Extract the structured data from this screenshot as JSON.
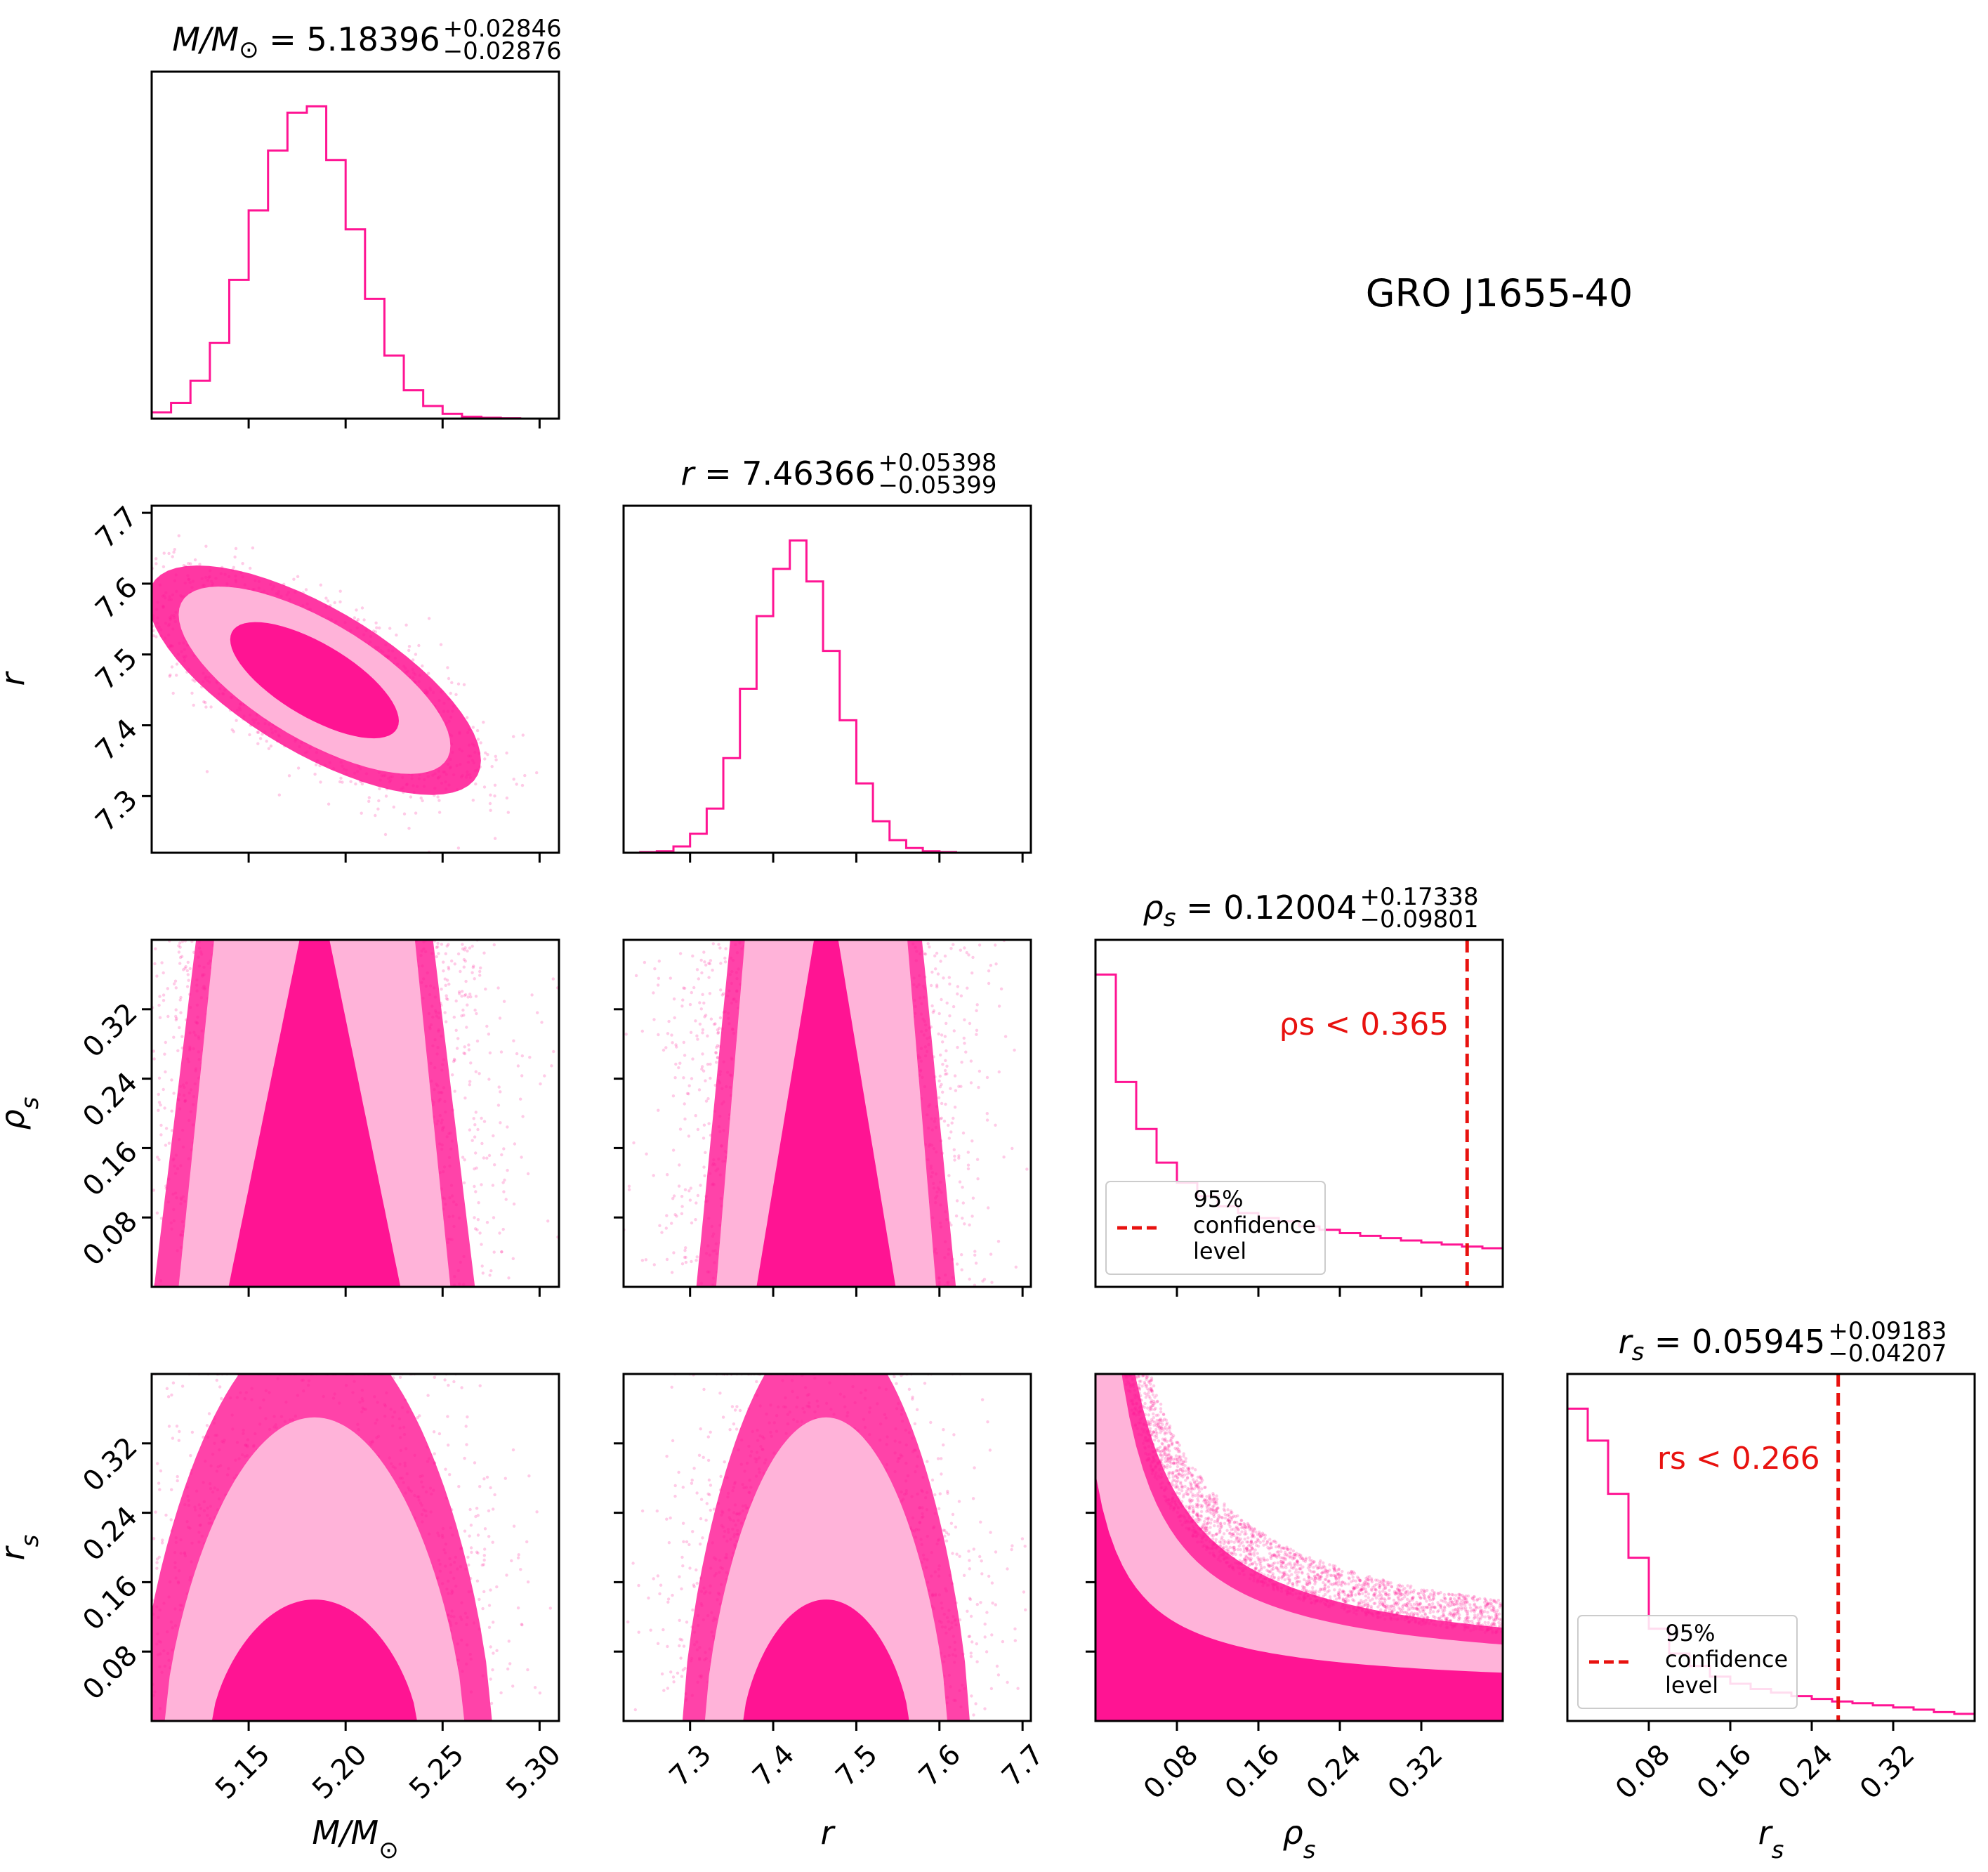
{
  "figure": {
    "object_label": "GRO J1655-40",
    "colors": {
      "hist": "#ff1493",
      "inner": "#ff1493",
      "outer": "#ffb3d9",
      "scatter": "#ff1493",
      "limit": "#e8120f"
    }
  },
  "chart_data": {
    "type": "corner",
    "parameters": [
      {
        "key": "M",
        "label": "M/M⊙",
        "median": "5.18396",
        "plus": "+0.02846",
        "minus": "−0.02876",
        "range": [
          5.1,
          5.31
        ],
        "ticks": [
          "5.15",
          "5.20",
          "5.25",
          "5.30"
        ],
        "tick_values": [
          5.15,
          5.2,
          5.25,
          5.3
        ]
      },
      {
        "key": "r",
        "label": "r",
        "median": "7.46366",
        "plus": "+0.05398",
        "minus": "−0.05399",
        "range": [
          7.22,
          7.71
        ],
        "ticks": [
          "7.3",
          "7.4",
          "7.5",
          "7.6",
          "7.7"
        ],
        "tick_values": [
          7.3,
          7.4,
          7.5,
          7.6,
          7.7
        ]
      },
      {
        "key": "rho_s",
        "label": "ρs",
        "median": "0.12004",
        "plus": "+0.17338",
        "minus": "−0.09801",
        "range": [
          0.0,
          0.4
        ],
        "ticks": [
          "0.08",
          "0.16",
          "0.24",
          "0.32"
        ],
        "tick_values": [
          0.08,
          0.16,
          0.24,
          0.32
        ]
      },
      {
        "key": "r_s",
        "label": "rs",
        "median": "0.05945",
        "plus": "+0.09183",
        "minus": "−0.04207",
        "range": [
          0.0,
          0.4
        ],
        "ticks": [
          "0.08",
          "0.16",
          "0.24",
          "0.32"
        ],
        "tick_values": [
          0.08,
          0.16,
          0.24,
          0.32
        ]
      }
    ],
    "histograms": {
      "M": {
        "edges_start": 5.1,
        "bin_width": 0.01,
        "counts": [
          0.02,
          0.05,
          0.12,
          0.24,
          0.44,
          0.66,
          0.85,
          0.97,
          0.99,
          0.82,
          0.6,
          0.38,
          0.2,
          0.09,
          0.04,
          0.015,
          0.006,
          0.003,
          0.001,
          0.0,
          0.0
        ]
      },
      "r": {
        "edges_start": 7.22,
        "bin_width": 0.02,
        "counts": [
          0.0,
          0.002,
          0.005,
          0.02,
          0.06,
          0.14,
          0.3,
          0.52,
          0.75,
          0.9,
          0.99,
          0.86,
          0.64,
          0.42,
          0.22,
          0.1,
          0.04,
          0.015,
          0.005,
          0.002,
          0.0,
          0.0,
          0.0,
          0.0,
          0.0
        ]
      },
      "rho_s": {
        "edges_start": 0.0,
        "bin_width": 0.02,
        "counts": [
          0.93,
          0.61,
          0.47,
          0.37,
          0.31,
          0.27,
          0.24,
          0.22,
          0.205,
          0.195,
          0.18,
          0.17,
          0.16,
          0.152,
          0.145,
          0.138,
          0.132,
          0.126,
          0.12,
          0.115
        ]
      },
      "r_s": {
        "edges_start": 0.0,
        "bin_width": 0.02,
        "counts": [
          0.88,
          0.79,
          0.64,
          0.46,
          0.26,
          0.19,
          0.155,
          0.125,
          0.105,
          0.09,
          0.08,
          0.07,
          0.062,
          0.055,
          0.05,
          0.044,
          0.038,
          0.032,
          0.025,
          0.02
        ]
      }
    },
    "upper_limits": [
      {
        "param": "rho_s",
        "value": 0.365,
        "label": "ρs < 0.365"
      },
      {
        "param": "r_s",
        "value": 0.266,
        "label": "rs < 0.266"
      }
    ],
    "legend": {
      "line1": "95%",
      "line2": "confidence",
      "line3": "level"
    }
  }
}
